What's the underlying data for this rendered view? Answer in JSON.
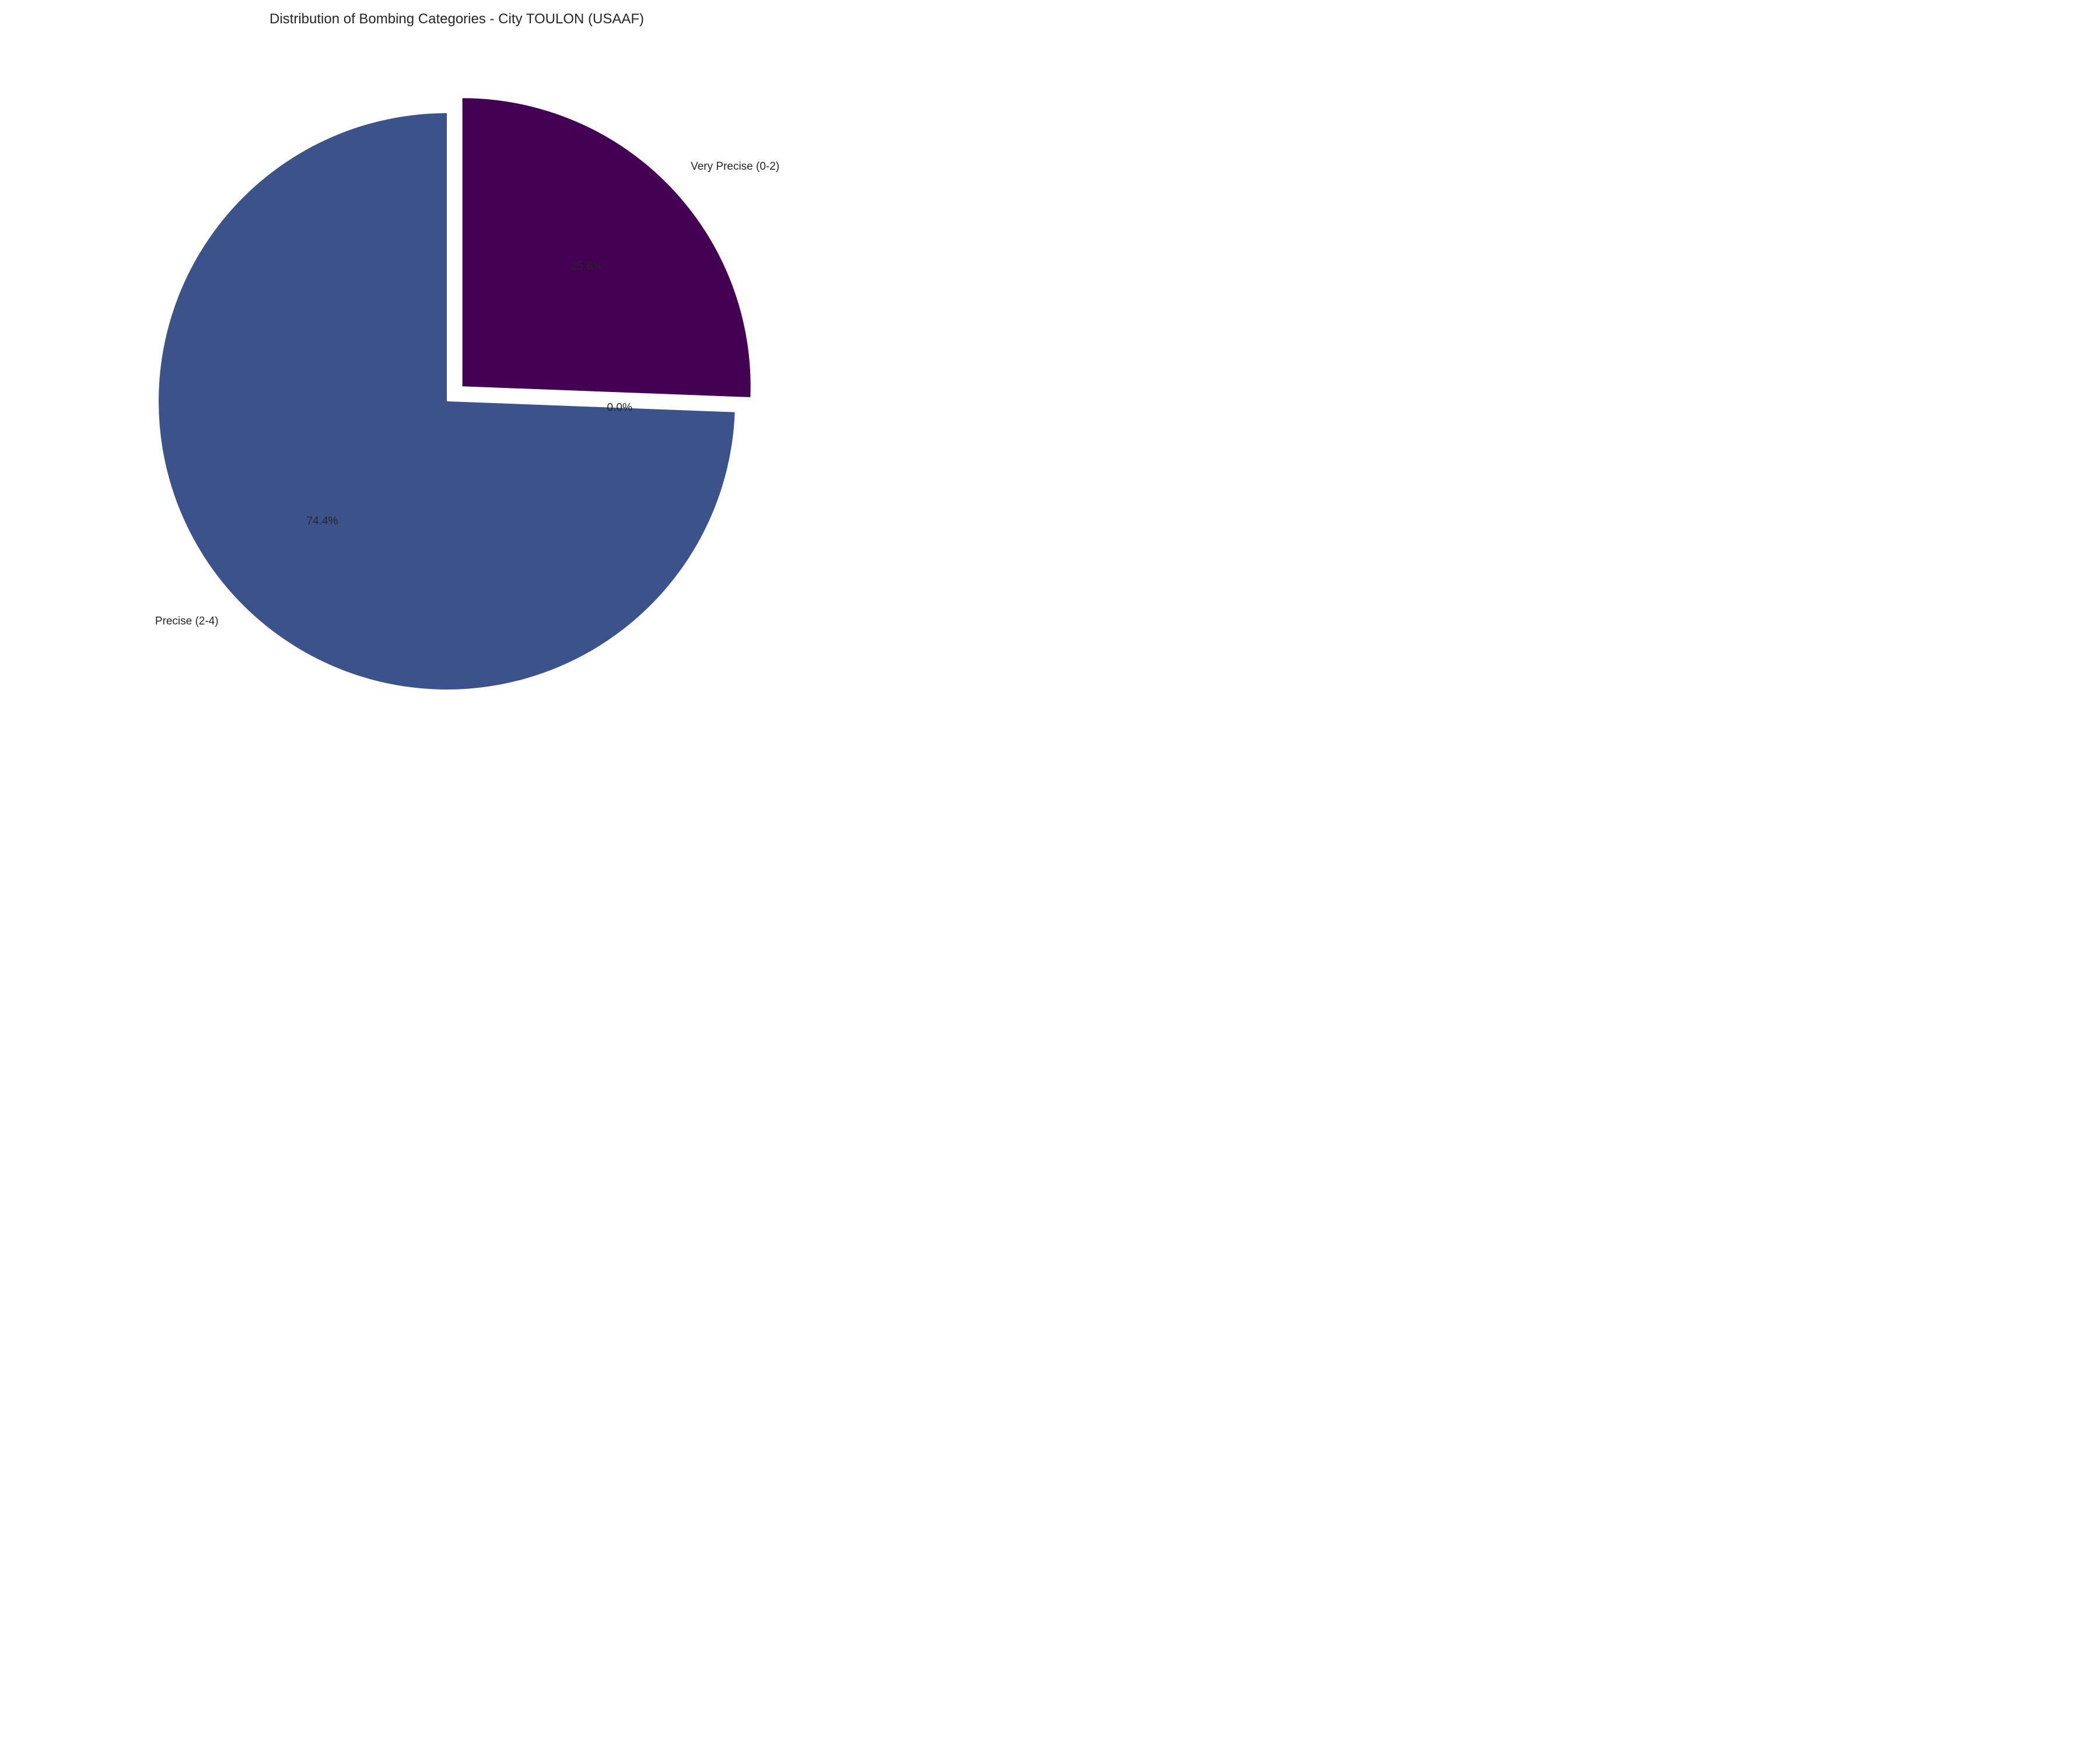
{
  "chart_data": {
    "type": "pie",
    "title": "Distribution of Bombing Categories - City TOULON (USAAF)",
    "slices": [
      {
        "label": "Very Precise (0-2)",
        "value": 25.6,
        "pct_label": "25.6%",
        "color": "#440154",
        "exploded": true
      },
      {
        "label": "",
        "value": 0.0,
        "pct_label": "0.0%",
        "color": "#ffffff",
        "exploded": false
      },
      {
        "label": "Precise (2-4)",
        "value": 74.4,
        "pct_label": "74.4%",
        "color": "#3b528b",
        "exploded": false
      }
    ],
    "start_angle_deg": 90,
    "direction": "clockwise"
  }
}
